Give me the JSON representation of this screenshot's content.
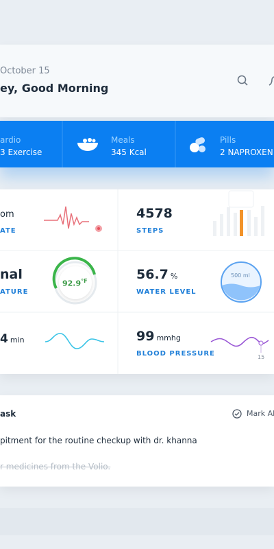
{
  "header": {
    "date": "October 15",
    "greeting": "ey, Good Morning"
  },
  "summary": [
    {
      "label": "ardio",
      "value": "3 Exercise"
    },
    {
      "label": "Meals",
      "value": "345 Kcal"
    },
    {
      "label": "Pills",
      "value": "2 NAPROXEN"
    }
  ],
  "metrics": [
    {
      "value": "om",
      "label": "ATE"
    },
    {
      "value": "4578",
      "label": "STEPS"
    },
    {
      "value": "nal",
      "label": "ATURE",
      "gauge": "92.9",
      "gauge_unit": "°F"
    },
    {
      "value": "56.7",
      "unit": "%",
      "label": "WATER LEVEL",
      "badge": "500 ml"
    },
    {
      "value": "4",
      "unit": "min"
    },
    {
      "value": "99",
      "unit": "mmhg",
      "label": "BLOOD PRESSURE",
      "marker": "15"
    }
  ],
  "tasks": {
    "title": "ask",
    "action": "Mark All",
    "items": [
      "pitment for the routine checkup with dr. khanna",
      "r medicines from the Volio."
    ]
  }
}
